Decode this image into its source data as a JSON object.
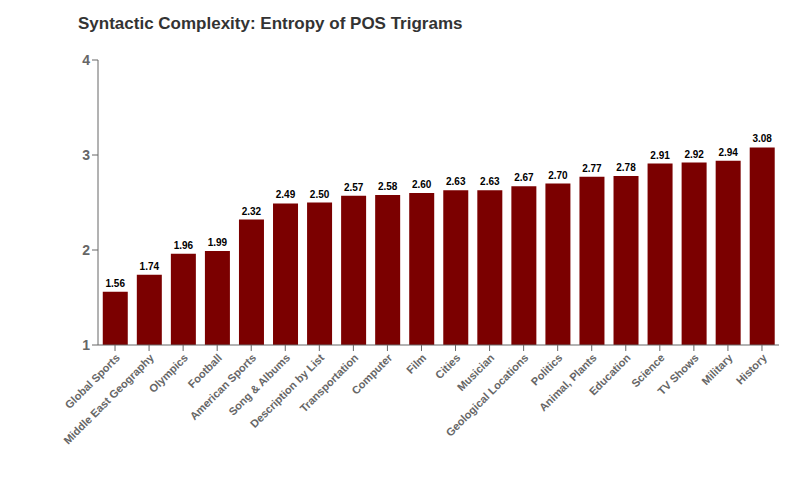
{
  "chart_data": {
    "type": "bar",
    "title": "Syntactic Complexity: Entropy of POS Trigrams",
    "categories": [
      "Global Sports",
      "Middle East Geography",
      "Olympics",
      "Football",
      "American Sports",
      "Song & Albums",
      "Description by List",
      "Transportation",
      "Computer",
      "Film",
      "Cities",
      "Musician",
      "Geological Locations",
      "Politics",
      "Animal, Plants",
      "Education",
      "Science",
      "TV Shows",
      "Military",
      "History"
    ],
    "values": [
      1.56,
      1.74,
      1.96,
      1.99,
      2.32,
      2.49,
      2.5,
      2.57,
      2.58,
      2.6,
      2.63,
      2.63,
      2.67,
      2.7,
      2.77,
      2.78,
      2.91,
      2.92,
      2.94,
      3.08
    ],
    "value_labels": [
      "1.56",
      "1.74",
      "1.96",
      "1.99",
      "2.32",
      "2.49",
      "2.50",
      "2.57",
      "2.58",
      "2.60",
      "2.63",
      "2.63",
      "2.67",
      "2.70",
      "2.77",
      "2.78",
      "2.91",
      "2.92",
      "2.94",
      "3.08"
    ],
    "color": "#7B0000",
    "ylim": [
      1,
      4
    ],
    "yticks": [
      1,
      2,
      3,
      4
    ],
    "grid": false,
    "data_labels": true
  }
}
